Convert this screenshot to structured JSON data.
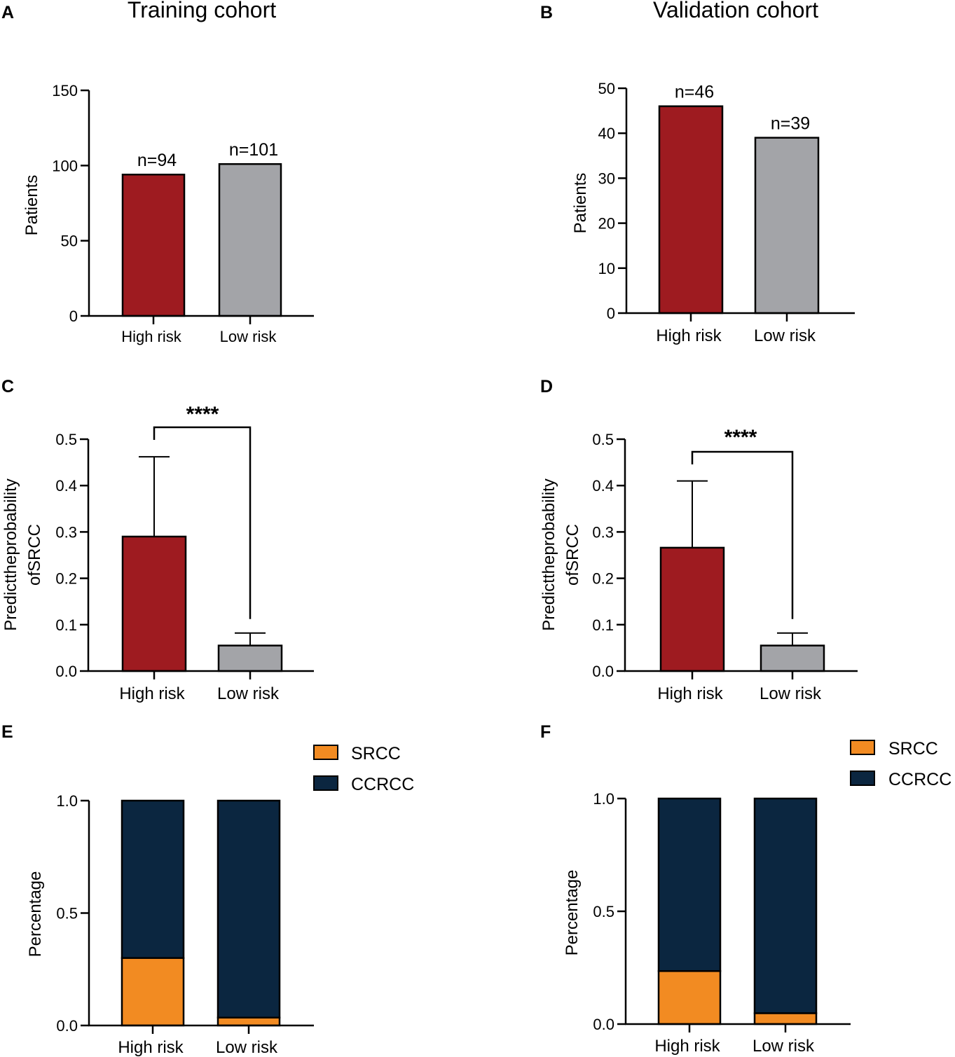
{
  "titles": {
    "training": "Training cohort",
    "validation": "Validation cohort"
  },
  "colors": {
    "high_risk": "#9e1b20",
    "low_risk": "#a3a4a8",
    "srcc": "#f28b22",
    "ccrcc": "#0b2640",
    "axis": "#000000"
  },
  "chart_data": [
    {
      "id": "A",
      "letter": "A",
      "type": "bar",
      "cohort": "Training cohort",
      "categories": [
        "High risk",
        "Low risk"
      ],
      "values": [
        94,
        101
      ],
      "value_labels": [
        "n=94",
        "n=101"
      ],
      "ylabel": "Patients",
      "ylim": [
        0,
        150
      ],
      "yticks": [
        0,
        50,
        100,
        150
      ],
      "ytick_labels": [
        "0",
        "50",
        "100",
        "150"
      ]
    },
    {
      "id": "B",
      "letter": "B",
      "type": "bar",
      "cohort": "Validation cohort",
      "categories": [
        "High risk",
        "Low risk"
      ],
      "values": [
        46,
        39
      ],
      "value_labels": [
        "n=46",
        "n=39"
      ],
      "ylabel": "Patients",
      "ylim": [
        0,
        50
      ],
      "yticks": [
        0,
        10,
        20,
        30,
        40,
        50
      ],
      "ytick_labels": [
        "0",
        "10",
        "20",
        "30",
        "40",
        "50"
      ]
    },
    {
      "id": "C",
      "letter": "C",
      "type": "bar",
      "categories": [
        "High risk",
        "Low risk"
      ],
      "values": [
        0.29,
        0.055
      ],
      "error_upper": [
        0.462,
        0.082
      ],
      "significance": "****",
      "ylabel_lines": [
        "Predicttheprobability",
        "ofSRCC"
      ],
      "ylim": [
        0,
        0.5
      ],
      "yticks": [
        0,
        0.1,
        0.2,
        0.3,
        0.4,
        0.5
      ],
      "ytick_labels": [
        "0.0",
        "0.1",
        "0.2",
        "0.3",
        "0.4",
        "0.5"
      ]
    },
    {
      "id": "D",
      "letter": "D",
      "type": "bar",
      "categories": [
        "High risk",
        "Low risk"
      ],
      "values": [
        0.266,
        0.055
      ],
      "error_upper": [
        0.41,
        0.082
      ],
      "significance": "****",
      "ylabel_lines": [
        "Predicttheprobability",
        "ofSRCC"
      ],
      "ylim": [
        0,
        0.5
      ],
      "yticks": [
        0,
        0.1,
        0.2,
        0.3,
        0.4,
        0.5
      ],
      "ytick_labels": [
        "0.0",
        "0.1",
        "0.2",
        "0.3",
        "0.4",
        "0.5"
      ]
    },
    {
      "id": "E",
      "letter": "E",
      "type": "bar",
      "stacked": true,
      "categories": [
        "High risk",
        "Low risk"
      ],
      "series": [
        {
          "name": "SRCC",
          "values": [
            0.3,
            0.035
          ]
        },
        {
          "name": "CCRCC",
          "values": [
            0.7,
            0.965
          ]
        }
      ],
      "ylabel": "Percentage",
      "ylim": [
        0,
        1.0
      ],
      "yticks": [
        0,
        0.5,
        1.0
      ],
      "ytick_labels": [
        "0.0",
        "0.5",
        "1.0"
      ],
      "legend": [
        "SRCC",
        "CCRCC"
      ]
    },
    {
      "id": "F",
      "letter": "F",
      "type": "bar",
      "stacked": true,
      "categories": [
        "High risk",
        "Low risk"
      ],
      "series": [
        {
          "name": "SRCC",
          "values": [
            0.235,
            0.048
          ]
        },
        {
          "name": "CCRCC",
          "values": [
            0.765,
            0.952
          ]
        }
      ],
      "ylabel": "Percentage",
      "ylim": [
        0,
        1.0
      ],
      "yticks": [
        0,
        0.5,
        1.0
      ],
      "ytick_labels": [
        "0.0",
        "0.5",
        "1.0"
      ],
      "legend": [
        "SRCC",
        "CCRCC"
      ]
    }
  ]
}
